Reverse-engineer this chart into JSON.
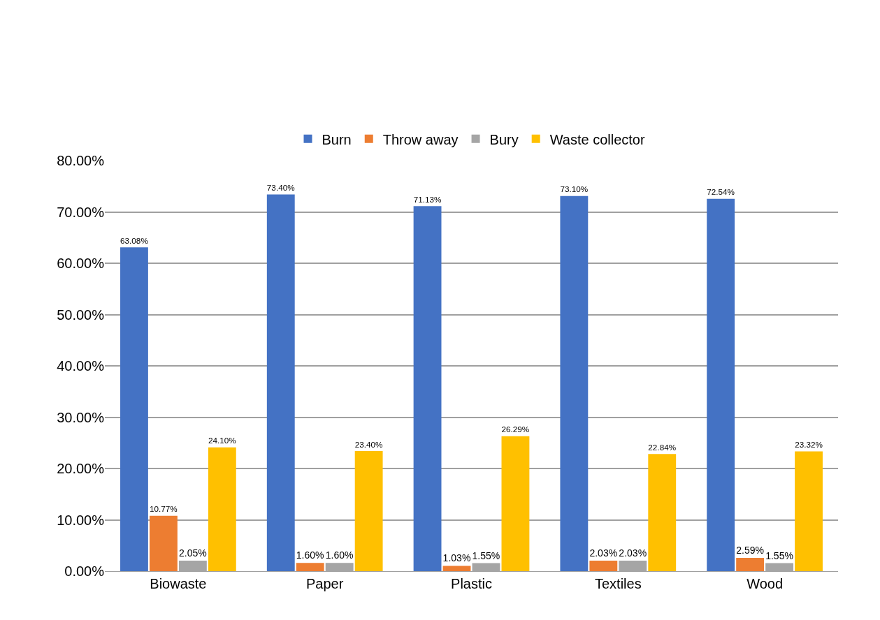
{
  "chart_data": {
    "type": "bar",
    "categories": [
      "Biowaste",
      "Paper",
      "Plastic",
      "Textiles",
      "Wood"
    ],
    "series": [
      {
        "name": "Burn",
        "color": "#4472c4",
        "values": [
          63.08,
          73.4,
          71.13,
          73.1,
          72.54
        ],
        "value_labels": [
          "63.08%",
          "73.40%",
          "71.13%",
          "73.10%",
          "72.54%"
        ]
      },
      {
        "name": "Throw away",
        "color": "#ed7d31",
        "values": [
          10.77,
          1.6,
          1.03,
          2.03,
          2.59
        ],
        "value_labels": [
          "10.77%",
          "1.60%",
          "1.03%",
          "2.03%",
          "2.59%"
        ]
      },
      {
        "name": "Bury",
        "color": "#a5a5a5",
        "values": [
          2.05,
          1.6,
          1.55,
          2.03,
          1.55
        ],
        "value_labels": [
          "2.05%",
          "1.60%",
          "1.55%",
          "2.03%",
          "1.55%"
        ]
      },
      {
        "name": "Waste collector",
        "color": "#ffc000",
        "values": [
          24.1,
          23.4,
          26.29,
          22.84,
          23.32
        ],
        "value_labels": [
          "24.10%",
          "23.40%",
          "26.29%",
          "22.84%",
          "23.32%"
        ]
      }
    ],
    "ylim": [
      0,
      80
    ],
    "yticks": [
      {
        "value": 0,
        "label": "0.00%"
      },
      {
        "value": 10,
        "label": "10.00%"
      },
      {
        "value": 20,
        "label": "20.00%"
      },
      {
        "value": 30,
        "label": "30.00%"
      },
      {
        "value": 40,
        "label": "40.00%"
      },
      {
        "value": 50,
        "label": "50.00%"
      },
      {
        "value": 60,
        "label": "60.00%"
      },
      {
        "value": 70,
        "label": "70.00%"
      },
      {
        "value": 80,
        "label": "80.00%"
      }
    ],
    "grid": "y",
    "legend": "top"
  }
}
